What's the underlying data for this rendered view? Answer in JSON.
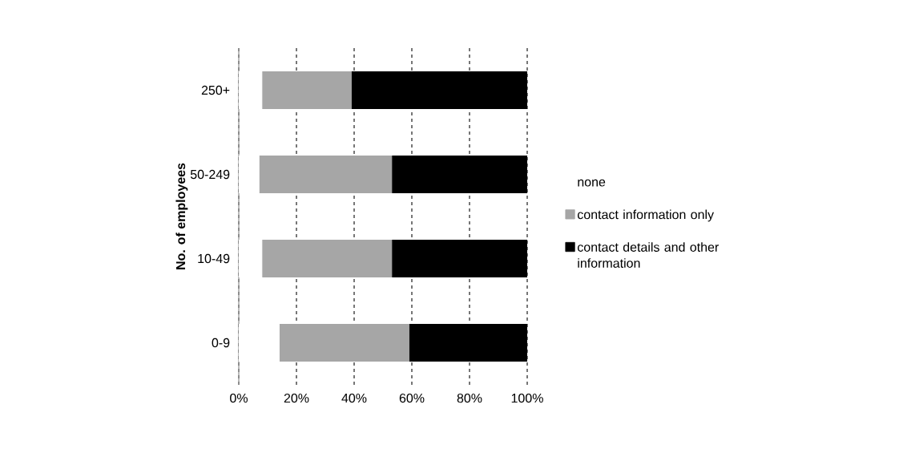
{
  "chart_data": {
    "type": "bar",
    "orientation": "horizontal",
    "stacked": true,
    "ylabel": "No. of employees",
    "categories": [
      "250+",
      "50-249",
      "10-49",
      "0-9"
    ],
    "series": [
      {
        "name": "none",
        "color": "#ffffff",
        "values": [
          8,
          7,
          8,
          14
        ]
      },
      {
        "name": "contact information only",
        "color": "#a6a6a6",
        "values": [
          31,
          46,
          45,
          45
        ]
      },
      {
        "name": "contact details and other information",
        "color": "#000000",
        "values": [
          61,
          47,
          47,
          41
        ]
      }
    ],
    "xlim": [
      0,
      100
    ],
    "xticks": [
      {
        "value": 0,
        "label": "0%"
      },
      {
        "value": 20,
        "label": "20%"
      },
      {
        "value": 40,
        "label": "40%"
      },
      {
        "value": 60,
        "label": "60%"
      },
      {
        "value": 80,
        "label": "80%"
      },
      {
        "value": 100,
        "label": "100%"
      }
    ],
    "grid": "x",
    "legend": "right"
  }
}
